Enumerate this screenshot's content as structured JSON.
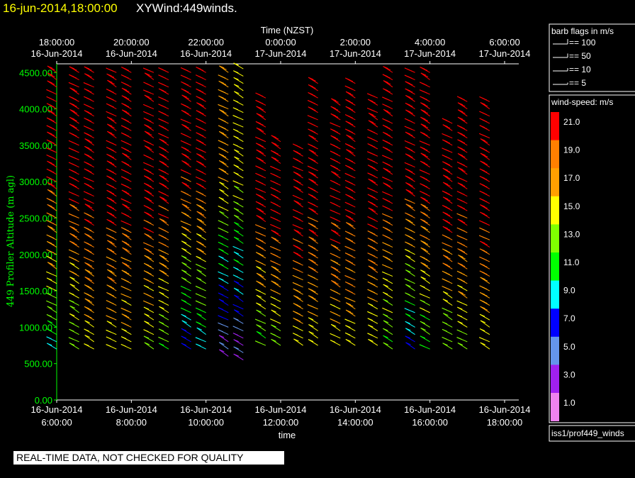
{
  "header": {
    "date_label": "16-jun-2014,18:00:00",
    "product_label": "XYWind:449winds."
  },
  "chart_data": {
    "type": "scatter",
    "variant": "wind-barb time-height plot",
    "top_axis_title": "Time (NZST)",
    "bottom_axis_title": "time",
    "ylabel": "449 Profiler Altitude (m agl)",
    "ylim": [
      0,
      4600
    ],
    "xlim_hours": [
      6,
      18
    ],
    "y_ticks": [
      "0.00",
      "500.00",
      "1000.00",
      "1500.00",
      "2000.00",
      "2500.00",
      "3000.00",
      "3500.00",
      "4000.00",
      "4500.00"
    ],
    "bottom_ticks": [
      {
        "date": "16-Jun-2014",
        "time": "6:00:00"
      },
      {
        "date": "16-Jun-2014",
        "time": "8:00:00"
      },
      {
        "date": "16-Jun-2014",
        "time": "10:00:00"
      },
      {
        "date": "16-Jun-2014",
        "time": "12:00:00"
      },
      {
        "date": "16-Jun-2014",
        "time": "14:00:00"
      },
      {
        "date": "16-Jun-2014",
        "time": "16:00:00"
      },
      {
        "date": "16-Jun-2014",
        "time": "18:00:00"
      }
    ],
    "top_ticks": [
      {
        "time": "18:00:00",
        "date": "16-Jun-2014"
      },
      {
        "time": "20:00:00",
        "date": "16-Jun-2014"
      },
      {
        "time": "22:00:00",
        "date": "16-Jun-2014"
      },
      {
        "time": "0:00:00",
        "date": "17-Jun-2014"
      },
      {
        "time": "2:00:00",
        "date": "17-Jun-2014"
      },
      {
        "time": "4:00:00",
        "date": "17-Jun-2014"
      },
      {
        "time": "6:00:00",
        "date": "17-Jun-2014"
      }
    ],
    "profiles": [
      {
        "hour": 6.0,
        "bottom": 700,
        "top": 4550,
        "speed_low": 10,
        "speed_high": 22
      },
      {
        "hour": 6.6,
        "bottom": 700,
        "top": 4550,
        "speed_low": 12,
        "speed_high": 22
      },
      {
        "hour": 7.0,
        "bottom": 700,
        "top": 4550,
        "speed_low": 15,
        "speed_high": 22
      },
      {
        "hour": 7.6,
        "bottom": 700,
        "top": 4550,
        "speed_low": 15,
        "speed_high": 22
      },
      {
        "hour": 8.0,
        "bottom": 700,
        "top": 4550,
        "speed_low": 15,
        "speed_high": 22
      },
      {
        "hour": 8.6,
        "bottom": 700,
        "top": 4550,
        "speed_low": 14,
        "speed_high": 22
      },
      {
        "hour": 9.0,
        "bottom": 700,
        "top": 4550,
        "speed_low": 12,
        "speed_high": 22
      },
      {
        "hour": 9.6,
        "bottom": 700,
        "top": 4550,
        "speed_low": 7,
        "speed_high": 21
      },
      {
        "hour": 10.0,
        "bottom": 700,
        "top": 4550,
        "speed_low": 9,
        "speed_high": 21
      },
      {
        "hour": 10.6,
        "bottom": 600,
        "top": 4550,
        "speed_low": 3,
        "speed_high": 17
      },
      {
        "hour": 11.0,
        "bottom": 550,
        "top": 4550,
        "speed_low": 3,
        "speed_high": 15
      },
      {
        "hour": 11.6,
        "bottom": 750,
        "top": 4150,
        "speed_low": 12,
        "speed_high": 22
      },
      {
        "hour": 12.0,
        "bottom": 750,
        "top": 3600,
        "speed_low": 12,
        "speed_high": 22
      },
      {
        "hour": 12.6,
        "bottom": 750,
        "top": 3450,
        "speed_low": 14,
        "speed_high": 22
      },
      {
        "hour": 13.0,
        "bottom": 750,
        "top": 4400,
        "speed_low": 15,
        "speed_high": 22
      },
      {
        "hour": 13.6,
        "bottom": 750,
        "top": 4050,
        "speed_low": 15,
        "speed_high": 22
      },
      {
        "hour": 14.0,
        "bottom": 750,
        "top": 4400,
        "speed_low": 15,
        "speed_high": 22
      },
      {
        "hour": 14.6,
        "bottom": 750,
        "top": 4150,
        "speed_low": 14,
        "speed_high": 22
      },
      {
        "hour": 15.0,
        "bottom": 700,
        "top": 4550,
        "speed_low": 12,
        "speed_high": 22
      },
      {
        "hour": 15.6,
        "bottom": 700,
        "top": 4550,
        "speed_low": 7,
        "speed_high": 22
      },
      {
        "hour": 16.0,
        "bottom": 700,
        "top": 4550,
        "speed_low": 11,
        "speed_high": 22
      },
      {
        "hour": 16.6,
        "bottom": 700,
        "top": 3850,
        "speed_low": 12,
        "speed_high": 22
      },
      {
        "hour": 17.0,
        "bottom": 700,
        "top": 4100,
        "speed_low": 13,
        "speed_high": 22
      },
      {
        "hour": 17.6,
        "bottom": 700,
        "top": 4100,
        "speed_low": 15,
        "speed_high": 22
      }
    ]
  },
  "legend": {
    "flags_title": "barb flags in m/s",
    "flags": [
      "== 100",
      "== 50",
      "== 10",
      "== 5"
    ],
    "speed_title": "wind-speed: m/s",
    "scale": [
      {
        "label": "21.0",
        "color": "#ff0000"
      },
      {
        "label": "19.0",
        "color": "#ff8000"
      },
      {
        "label": "17.0",
        "color": "#ffa000"
      },
      {
        "label": "15.0",
        "color": "#ffff00"
      },
      {
        "label": "13.0",
        "color": "#80ff00"
      },
      {
        "label": "11.0",
        "color": "#00ff00"
      },
      {
        "label": "9.0",
        "color": "#00ffff"
      },
      {
        "label": "7.0",
        "color": "#0000ff"
      },
      {
        "label": "5.0",
        "color": "#6495ed"
      },
      {
        "label": "3.0",
        "color": "#a020f0"
      },
      {
        "label": "1.0",
        "color": "#ee82ee"
      }
    ],
    "dataset": "iss1/prof449_winds"
  },
  "footer": {
    "qc_notice": "REAL-TIME DATA, NOT CHECKED FOR QUALITY"
  },
  "colors": {
    "axis": "#00ff00",
    "header_date": "#ffff00",
    "background": "#000000"
  }
}
